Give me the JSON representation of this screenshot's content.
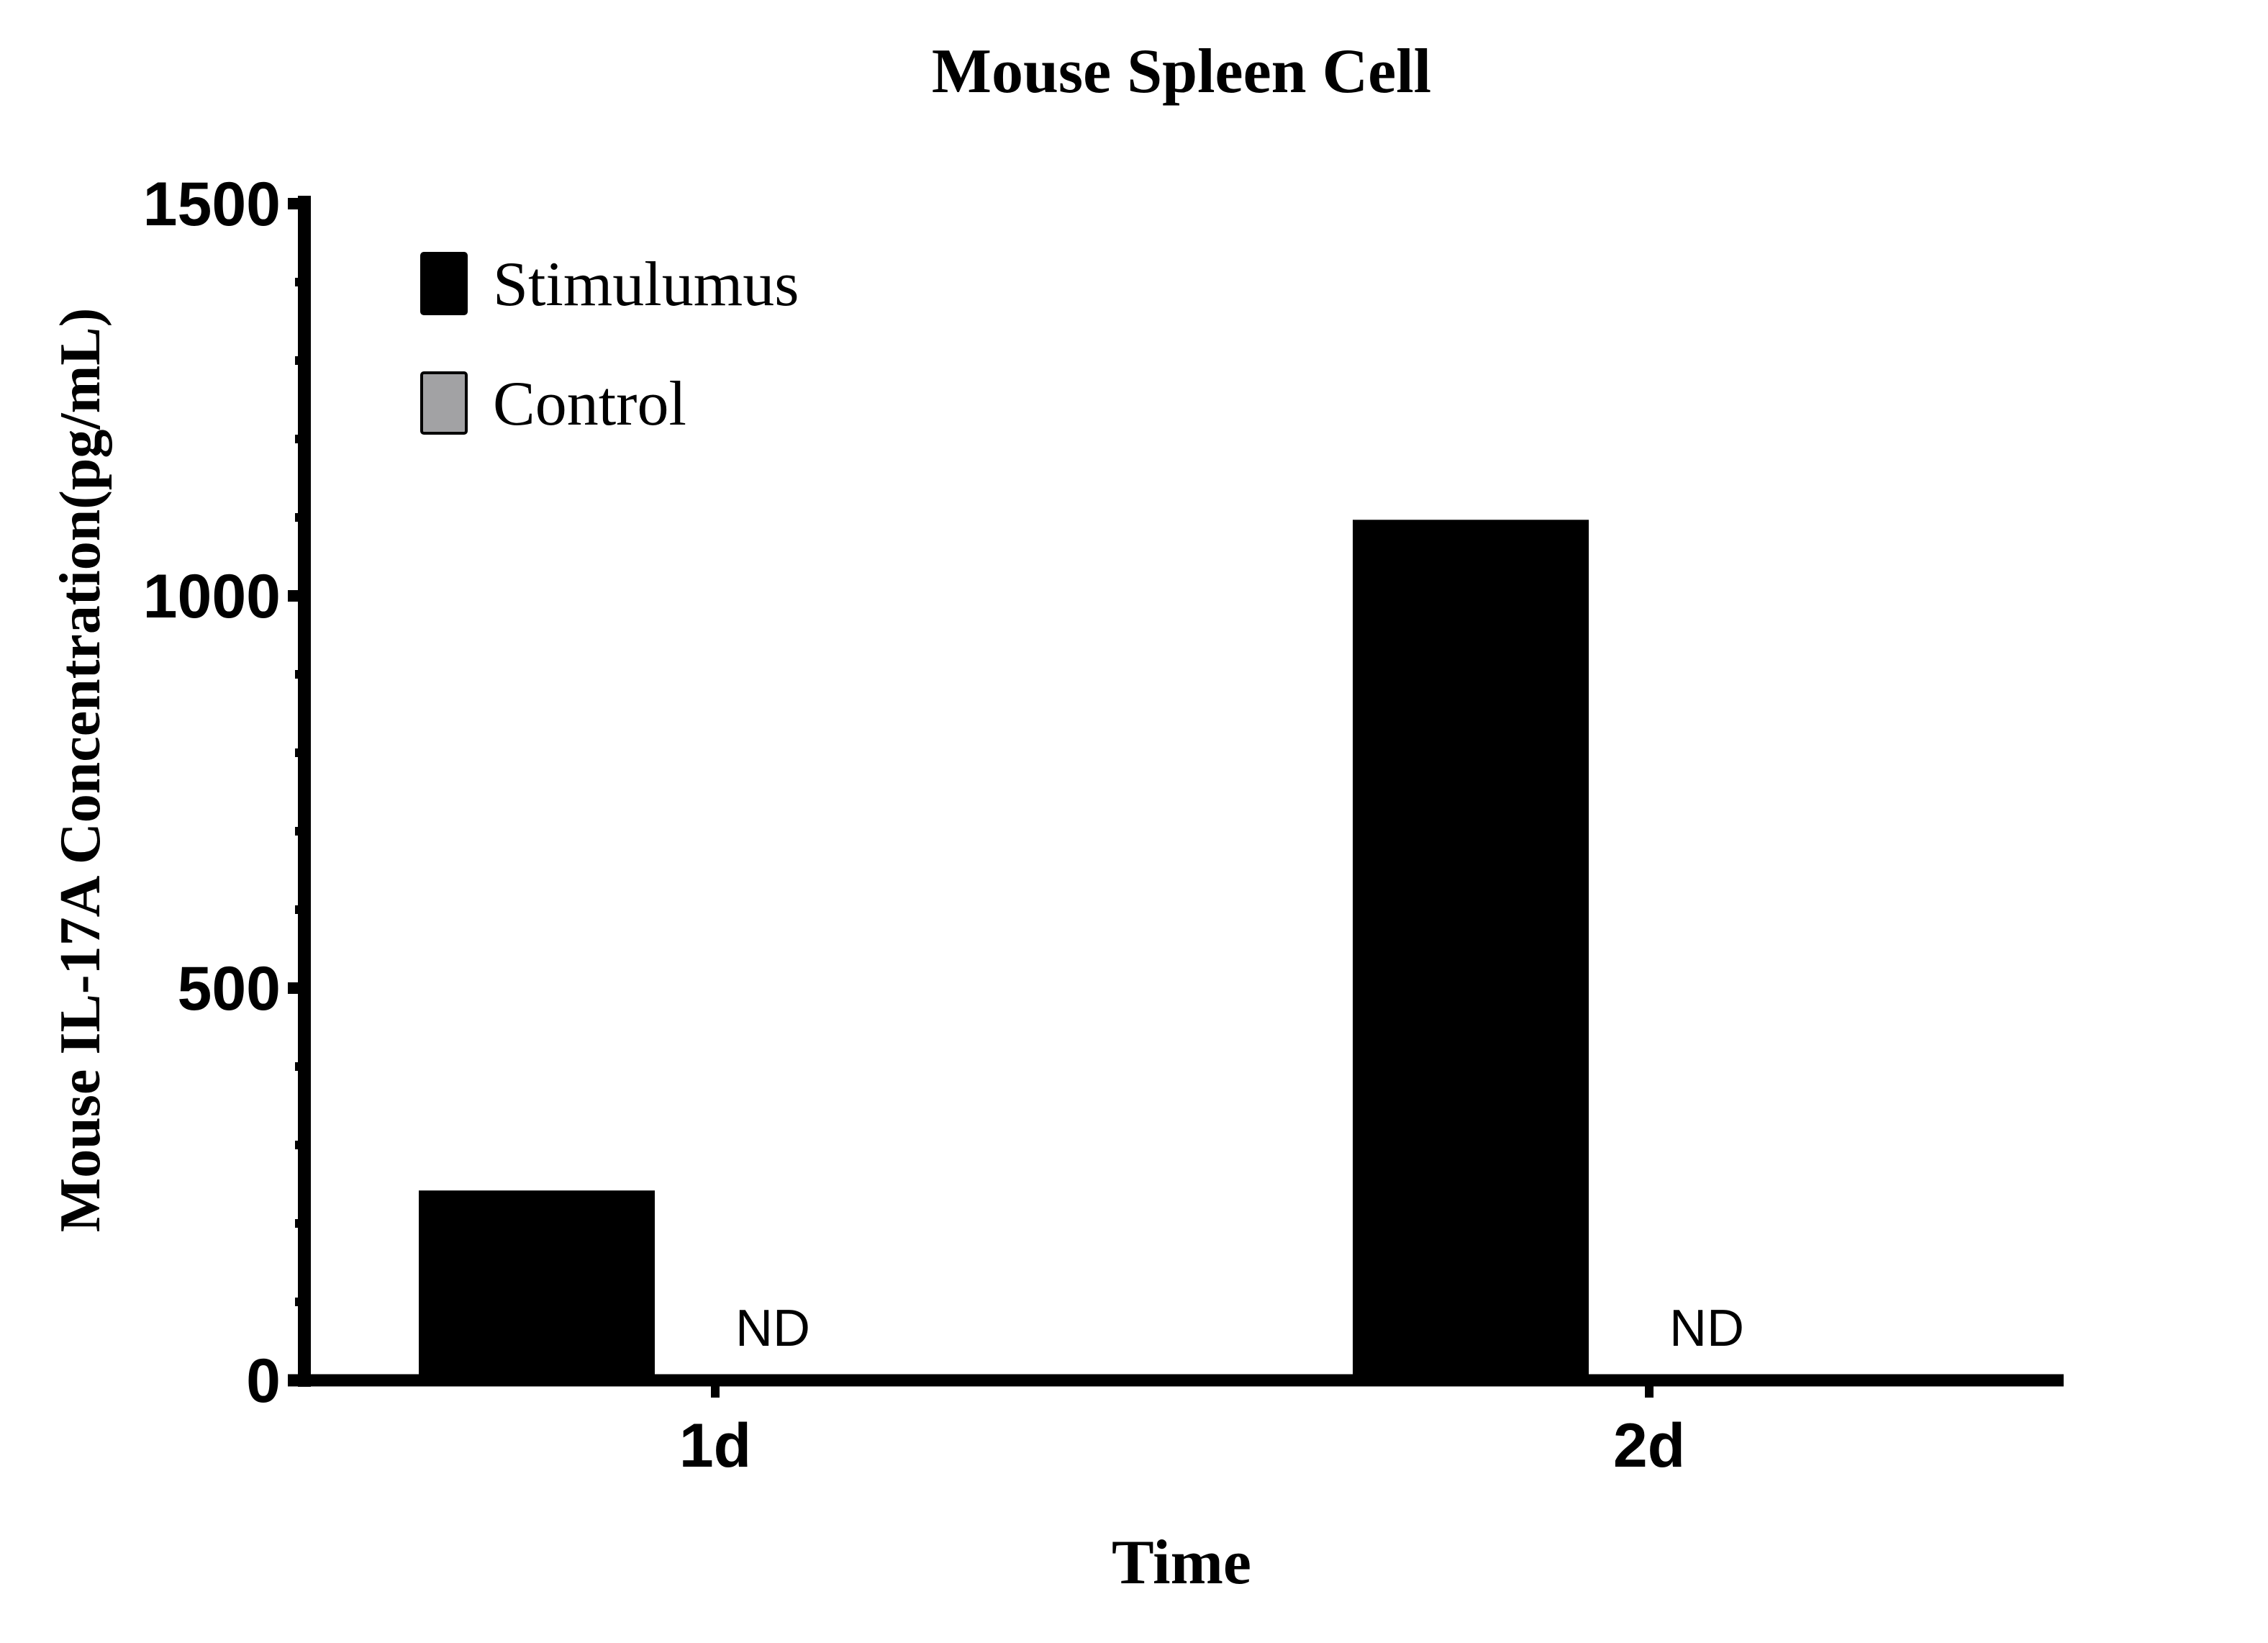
{
  "chart_data": {
    "type": "bar",
    "title": "Mouse Spleen Cell",
    "xlabel": "Time",
    "ylabel": "Mouse IL-17A Concentration(pg/mL)",
    "categories": [
      "1d",
      "2d"
    ],
    "series": [
      {
        "name": "Stimulumus",
        "color": "#000000",
        "values": [
          242,
          1097
        ]
      },
      {
        "name": "Control",
        "color": "#a2a2a4",
        "values": [
          0,
          0
        ],
        "labels": [
          "ND",
          "ND"
        ]
      }
    ],
    "ylim": [
      0,
      1500
    ],
    "yticks": [
      0,
      500,
      1000,
      1500
    ],
    "minor_tick_step": 100,
    "grid": false,
    "legend_position": "upper-left",
    "annotations": [
      "ND",
      "ND"
    ]
  }
}
